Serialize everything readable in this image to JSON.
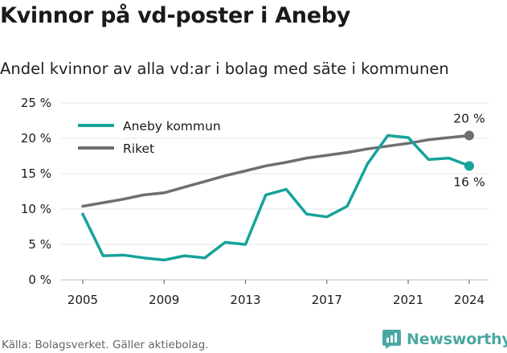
{
  "title": "Kvinnor på vd-poster i Aneby",
  "subtitle": "Andel kvinnor av alla vd:ar i bolag med säte i kommunen",
  "source": "Källa: Bolagsverket. Gäller aktiebolag.",
  "brand": {
    "name": "Newsworthy",
    "icon": "newsworthy-logo-icon",
    "color": "#4aa8a2"
  },
  "chart_data": {
    "type": "line",
    "x": [
      2005,
      2006,
      2007,
      2008,
      2009,
      2010,
      2011,
      2012,
      2013,
      2014,
      2015,
      2016,
      2017,
      2018,
      2019,
      2020,
      2021,
      2022,
      2023,
      2024
    ],
    "x_ticks": [
      "2005",
      "2009",
      "2013",
      "2017",
      "2021",
      "2024"
    ],
    "y_ticks": [
      "0 %",
      "5 %",
      "10 %",
      "15 %",
      "20 %",
      "25 %"
    ],
    "ylim": [
      0,
      25
    ],
    "xlim": [
      2005,
      2024
    ],
    "grid": true,
    "legend_position": "top-left",
    "series": [
      {
        "name": "Aneby kommun",
        "color": "#16a39a",
        "values": [
          9.3,
          3.4,
          3.5,
          3.1,
          2.8,
          3.4,
          3.1,
          5.3,
          5.0,
          12.0,
          12.8,
          9.3,
          8.9,
          10.4,
          16.4,
          20.4,
          20.1,
          17.0,
          17.2,
          16.1
        ],
        "end_label": "16 %"
      },
      {
        "name": "Riket",
        "color": "#6e6e73",
        "values": [
          10.4,
          10.9,
          11.4,
          12.0,
          12.3,
          13.1,
          13.9,
          14.7,
          15.4,
          16.1,
          16.6,
          17.2,
          17.6,
          18.0,
          18.5,
          18.9,
          19.3,
          19.8,
          20.1,
          20.4
        ],
        "end_label": "20 %"
      }
    ]
  }
}
